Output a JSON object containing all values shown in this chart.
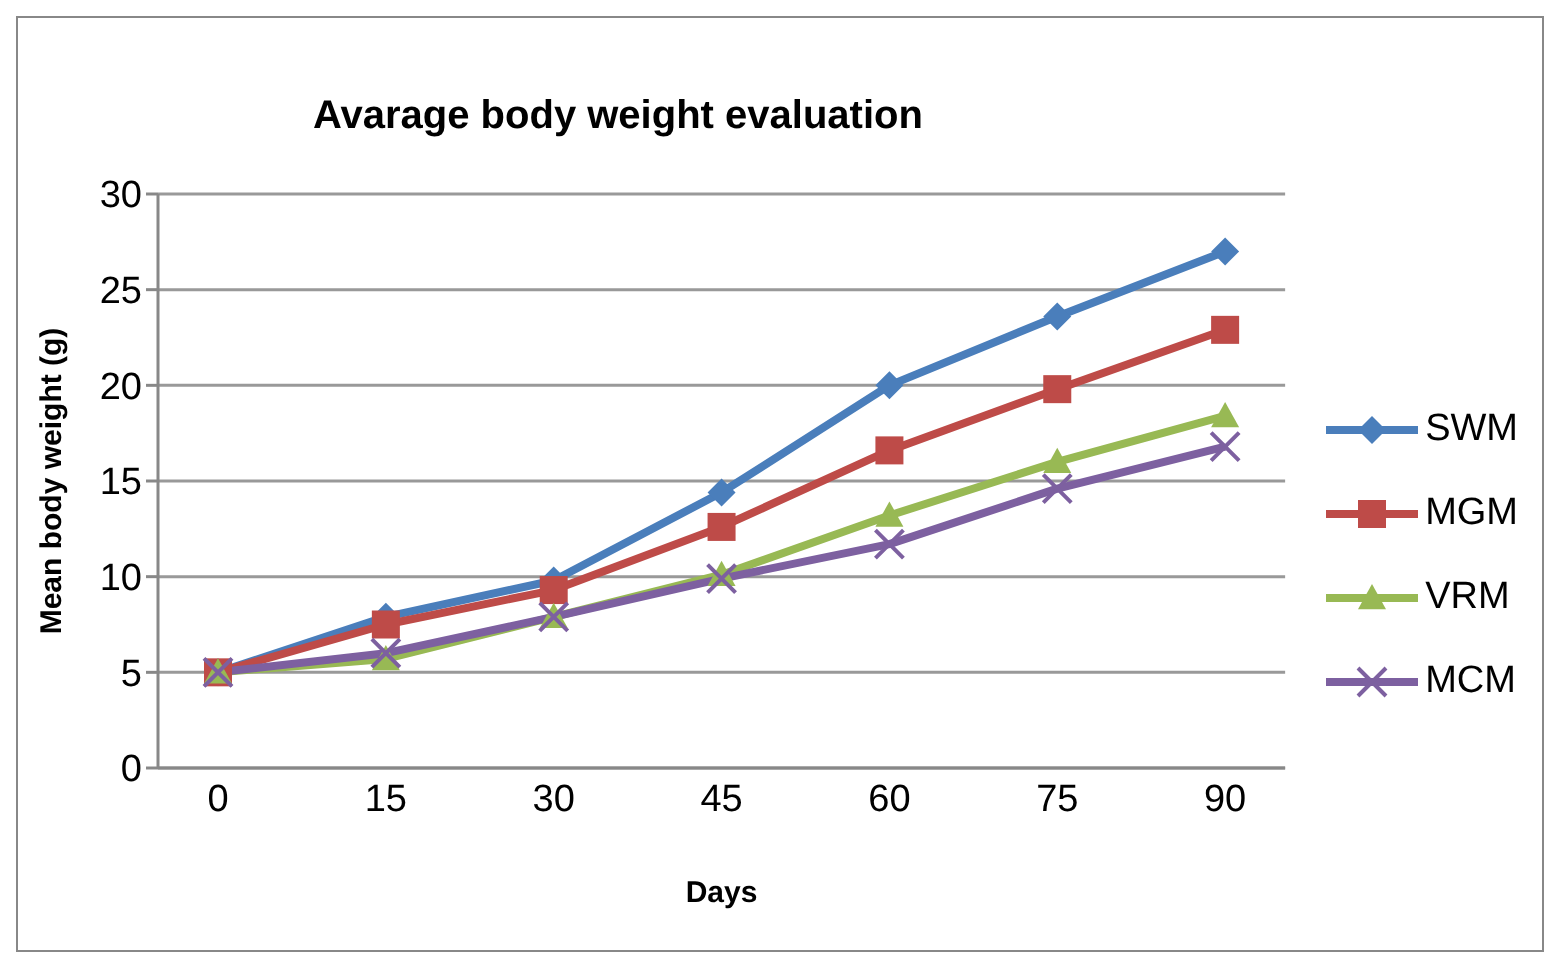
{
  "chart_data": {
    "type": "line",
    "title": "Avarage body weight evaluation",
    "xlabel": "Days",
    "ylabel": "Mean body weight  (g)",
    "categories": [
      "0",
      "15",
      "30",
      "45",
      "60",
      "75",
      "90"
    ],
    "series": [
      {
        "name": "SWM",
        "color": "#4a7ebb",
        "marker": "diamond",
        "values": [
          5,
          7.9,
          9.8,
          14.4,
          20,
          23.6,
          27
        ]
      },
      {
        "name": "MGM",
        "color": "#be4b48",
        "marker": "square",
        "values": [
          5,
          7.5,
          9.3,
          12.6,
          16.6,
          19.8,
          22.9
        ]
      },
      {
        "name": "VRM",
        "color": "#98b954",
        "marker": "triangle",
        "values": [
          5,
          5.7,
          7.9,
          10.1,
          13.2,
          16,
          18.4
        ]
      },
      {
        "name": "MCM",
        "color": "#7d60a0",
        "marker": "cross",
        "values": [
          5,
          6,
          7.9,
          9.9,
          11.7,
          14.6,
          16.8
        ]
      }
    ],
    "ylim": [
      0,
      30
    ],
    "yticks": [
      0,
      5,
      10,
      15,
      20,
      25,
      30
    ],
    "grid": "y",
    "legend": "right"
  }
}
